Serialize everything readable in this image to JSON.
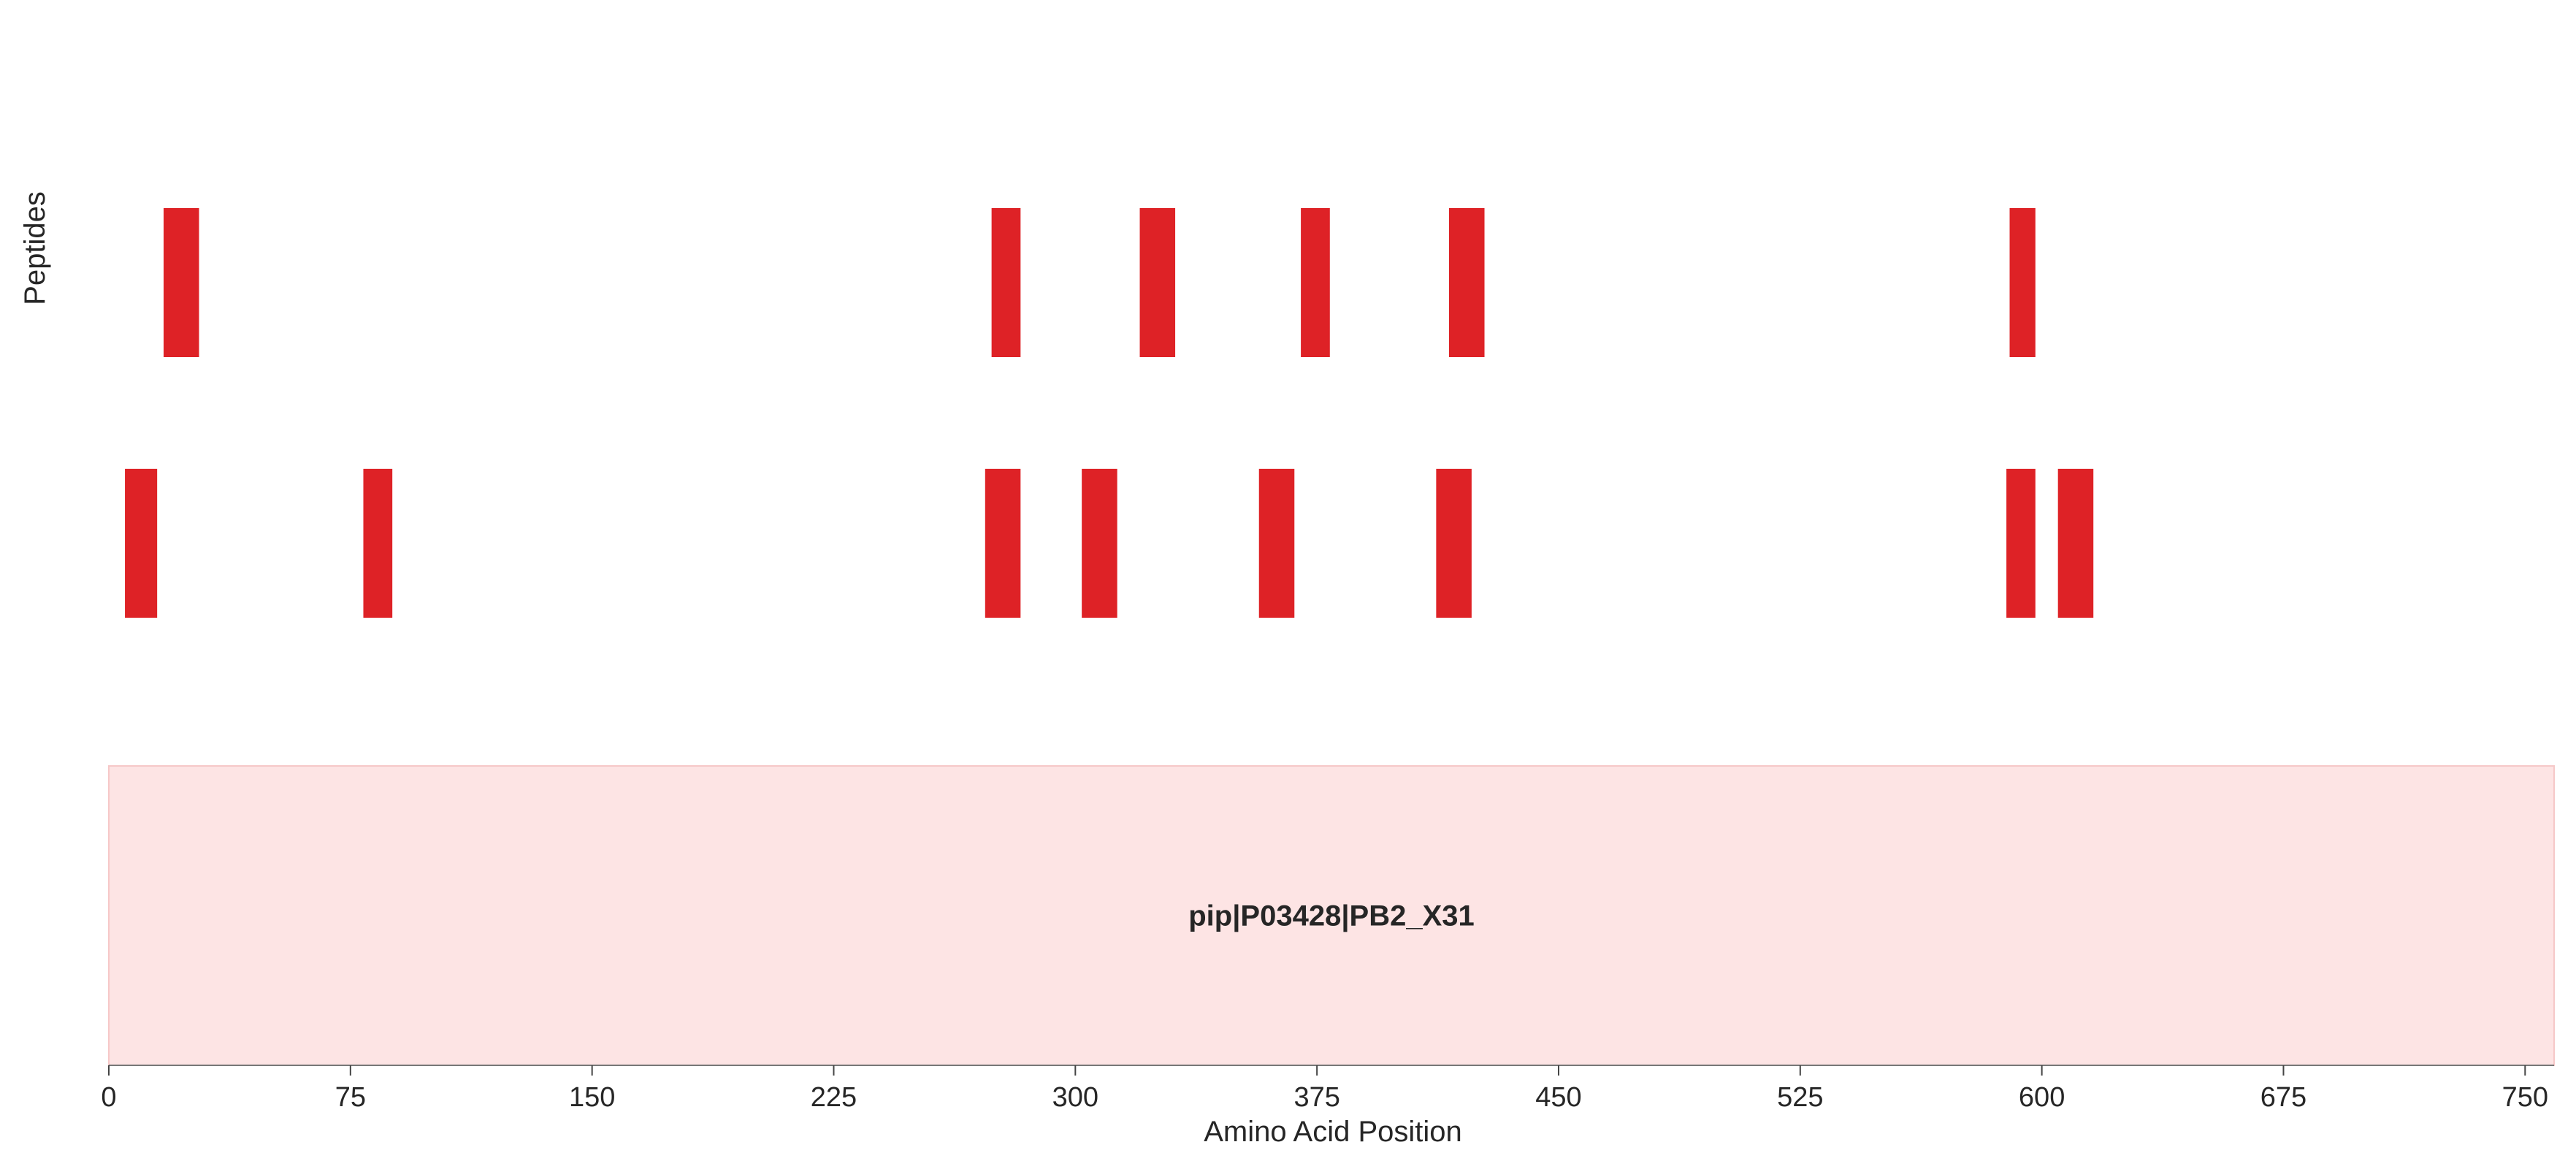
{
  "chart_data": {
    "type": "peptide-coverage",
    "xlabel": "Amino Acid Position",
    "ylabel": "Peptides",
    "xlim": [
      0,
      759
    ],
    "xticks": [
      0,
      75,
      150,
      225,
      300,
      375,
      450,
      525,
      600,
      675,
      750
    ],
    "protein": {
      "name": "pip|P03428|PB2_X31",
      "start": 0,
      "end": 759,
      "color": "#fde4e4"
    },
    "peptide_color": "#de2226",
    "rows": [
      {
        "row": 1,
        "peptides": [
          {
            "start": 17,
            "end": 28
          },
          {
            "start": 274,
            "end": 283
          },
          {
            "start": 320,
            "end": 331
          },
          {
            "start": 370,
            "end": 379
          },
          {
            "start": 416,
            "end": 427
          },
          {
            "start": 590,
            "end": 598
          }
        ]
      },
      {
        "row": 2,
        "peptides": [
          {
            "start": 5,
            "end": 15
          },
          {
            "start": 79,
            "end": 88
          },
          {
            "start": 272,
            "end": 283
          },
          {
            "start": 302,
            "end": 313
          },
          {
            "start": 357,
            "end": 368
          },
          {
            "start": 412,
            "end": 423
          },
          {
            "start": 589,
            "end": 598
          },
          {
            "start": 605,
            "end": 616
          }
        ]
      }
    ]
  }
}
